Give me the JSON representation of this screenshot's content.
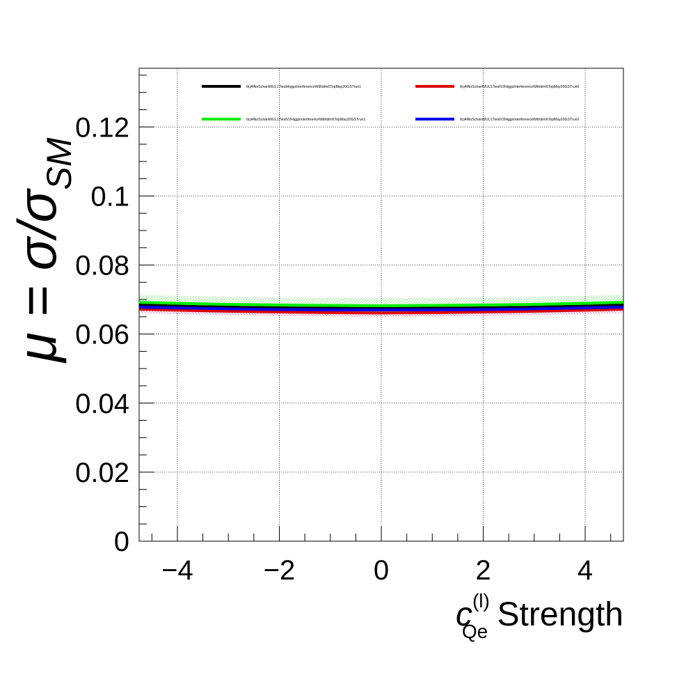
{
  "chart_data": {
    "type": "line",
    "title": "",
    "xlabel": {
      "main": "c",
      "superscript": "(l)",
      "subscript": "Qe",
      "suffix": " Strength"
    },
    "ylabel": {
      "main": "μ = σ/σ",
      "subscript": "SM"
    },
    "xlim": [
      -4.75,
      4.75
    ],
    "ylim": [
      0,
      0.137
    ],
    "x_ticks": [
      -4,
      -2,
      0,
      2,
      4
    ],
    "x_tick_labels": [
      "−4",
      "−2",
      "0",
      "2",
      "4"
    ],
    "y_ticks": [
      0,
      0.02,
      0.04,
      0.06,
      0.08,
      0.1,
      0.12
    ],
    "y_tick_labels": [
      "0",
      "0.02",
      "0.04",
      "0.06",
      "0.08",
      "0.1",
      "0.12"
    ],
    "grid": true,
    "legend_position": "top",
    "x": [
      -4.75,
      -4,
      -3,
      -2,
      -1,
      0,
      1,
      2,
      3,
      4,
      4.75
    ],
    "series": [
      {
        "name": "ttcj4lNoSchanWUL17testHiggsInterferenceWithdim6TopMay20GSTrun1",
        "color": "#000000",
        "values": [
          0.0684,
          0.0681,
          0.0678,
          0.0676,
          0.0675,
          0.0674,
          0.0675,
          0.0676,
          0.0678,
          0.0681,
          0.0684
        ],
        "err": [
          0.0009,
          0.0009,
          0.0009,
          0.0009,
          0.0009,
          0.0009,
          0.0009,
          0.0009,
          0.0009,
          0.0009,
          0.0009
        ]
      },
      {
        "name": "ttcj4lNoSchanWUL17testV2HiggsInterferenceWithdim6TopMay20GSTrun0",
        "color": "#dd0000",
        "values": [
          0.0672,
          0.0669,
          0.0666,
          0.0664,
          0.0662,
          0.0661,
          0.0662,
          0.0664,
          0.0666,
          0.0669,
          0.0672
        ],
        "err": [
          0.0011,
          0.0011,
          0.0011,
          0.0011,
          0.0011,
          0.0011,
          0.0011,
          0.0011,
          0.0011,
          0.0011,
          0.0011
        ]
      },
      {
        "name": "ttcj4lNoSchanWUL17testV2HiggsInterferenceWithdim6TopMay20GSTrun1",
        "color": "#00ee00",
        "values": [
          0.0692,
          0.0689,
          0.0686,
          0.0684,
          0.0683,
          0.0682,
          0.0683,
          0.0684,
          0.0686,
          0.0689,
          0.0692
        ],
        "err": [
          0.0022,
          0.0022,
          0.0022,
          0.0022,
          0.0022,
          0.0022,
          0.0022,
          0.0022,
          0.0022,
          0.0022,
          0.0022
        ]
      },
      {
        "name": "ttcj4lNoSchanWUL17testV2HiggsInterferenceWithdim6TopMay20GSTrun2",
        "color": "#0000ee",
        "values": [
          0.0678,
          0.0676,
          0.0673,
          0.0671,
          0.067,
          0.067,
          0.067,
          0.0671,
          0.0673,
          0.0676,
          0.0678
        ],
        "err": [
          0.001,
          0.001,
          0.001,
          0.001,
          0.001,
          0.001,
          0.001,
          0.001,
          0.001,
          0.001,
          0.001
        ]
      }
    ]
  }
}
